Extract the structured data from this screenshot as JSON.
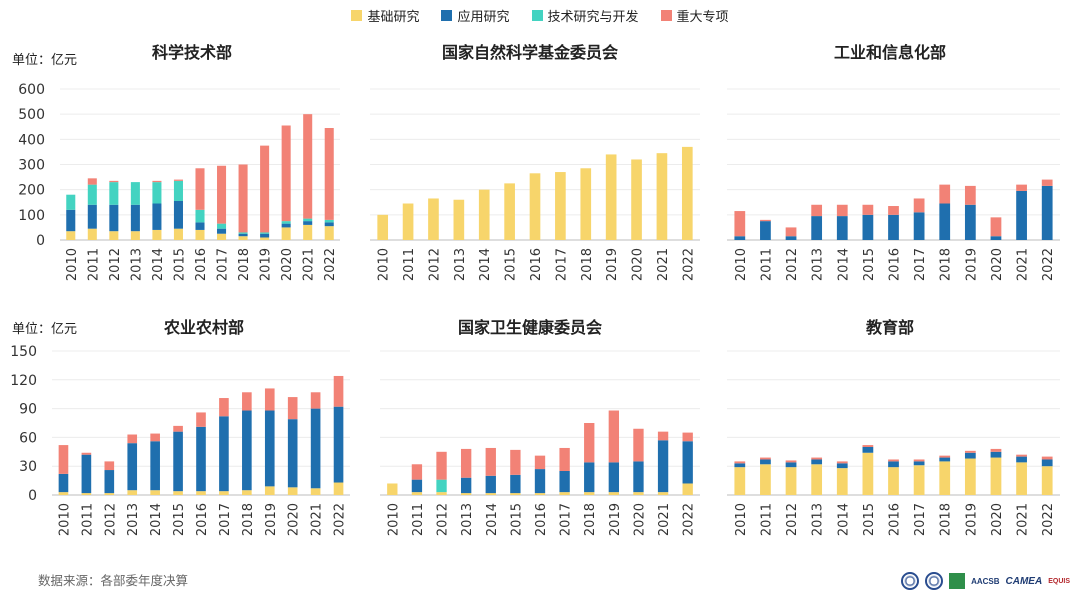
{
  "legend": {
    "items": [
      {
        "label": "基础研究",
        "color": "#f7d56b"
      },
      {
        "label": "应用研究",
        "color": "#1f6fae"
      },
      {
        "label": "技术研究与开发",
        "color": "#43d3c1"
      },
      {
        "label": "重大专项",
        "color": "#f28276"
      }
    ]
  },
  "source": "数据来源：各部委年度决算",
  "logos": {
    "aacsb": "AACSB",
    "camea": "CAMEA",
    "equis": "EQUIS"
  },
  "chart_data": [
    {
      "type": "bar",
      "stacked": true,
      "title": "科学技术部",
      "unit_label": "单位：亿元",
      "categories": [
        "2010",
        "2011",
        "2012",
        "2013",
        "2014",
        "2015",
        "2016",
        "2017",
        "2018",
        "2019",
        "2020",
        "2021",
        "2022"
      ],
      "ylim": [
        0,
        600
      ],
      "yticks": [
        0,
        100,
        200,
        300,
        400,
        500,
        600
      ],
      "show_yticks": true,
      "series": [
        {
          "name": "基础研究",
          "values": [
            35,
            45,
            35,
            35,
            40,
            45,
            40,
            25,
            15,
            10,
            50,
            60,
            55
          ]
        },
        {
          "name": "应用研究",
          "values": [
            85,
            95,
            105,
            105,
            105,
            110,
            30,
            20,
            10,
            15,
            15,
            15,
            15
          ]
        },
        {
          "name": "技术研究与开发",
          "values": [
            60,
            80,
            90,
            90,
            85,
            80,
            50,
            20,
            5,
            5,
            10,
            10,
            10
          ]
        },
        {
          "name": "重大专项",
          "values": [
            0,
            25,
            5,
            0,
            5,
            5,
            165,
            230,
            270,
            345,
            380,
            415,
            365
          ]
        }
      ]
    },
    {
      "type": "bar",
      "stacked": true,
      "title": "国家自然科学基金委员会",
      "unit_label": "",
      "categories": [
        "2010",
        "2011",
        "2012",
        "2013",
        "2014",
        "2015",
        "2016",
        "2017",
        "2018",
        "2019",
        "2020",
        "2021",
        "2022"
      ],
      "ylim": [
        0,
        600
      ],
      "yticks": [
        0,
        100,
        200,
        300,
        400,
        500,
        600
      ],
      "show_yticks": false,
      "series": [
        {
          "name": "基础研究",
          "values": [
            100,
            145,
            165,
            160,
            200,
            225,
            265,
            270,
            285,
            340,
            320,
            345,
            370
          ]
        },
        {
          "name": "应用研究",
          "values": [
            0,
            0,
            0,
            0,
            0,
            0,
            0,
            0,
            0,
            0,
            0,
            0,
            0
          ]
        },
        {
          "name": "技术研究与开发",
          "values": [
            0,
            0,
            0,
            0,
            0,
            0,
            0,
            0,
            0,
            0,
            0,
            0,
            0
          ]
        },
        {
          "name": "重大专项",
          "values": [
            0,
            0,
            0,
            0,
            0,
            0,
            0,
            0,
            0,
            0,
            0,
            0,
            0
          ]
        }
      ]
    },
    {
      "type": "bar",
      "stacked": true,
      "title": "工业和信息化部",
      "unit_label": "",
      "categories": [
        "2010",
        "2011",
        "2012",
        "2013",
        "2014",
        "2015",
        "2016",
        "2017",
        "2018",
        "2019",
        "2020",
        "2021",
        "2022"
      ],
      "ylim": [
        0,
        600
      ],
      "yticks": [
        0,
        100,
        200,
        300,
        400,
        500,
        600
      ],
      "show_yticks": false,
      "series": [
        {
          "name": "基础研究",
          "values": [
            0,
            0,
            0,
            0,
            0,
            0,
            0,
            0,
            0,
            0,
            0,
            0,
            0
          ]
        },
        {
          "name": "应用研究",
          "values": [
            15,
            75,
            15,
            95,
            95,
            100,
            100,
            110,
            145,
            140,
            15,
            195,
            215
          ]
        },
        {
          "name": "技术研究与开发",
          "values": [
            0,
            0,
            0,
            0,
            0,
            0,
            0,
            0,
            0,
            0,
            0,
            0,
            0
          ]
        },
        {
          "name": "重大专项",
          "values": [
            100,
            5,
            35,
            45,
            45,
            40,
            35,
            55,
            75,
            75,
            75,
            25,
            25
          ]
        }
      ]
    },
    {
      "type": "bar",
      "stacked": true,
      "title": "农业农村部",
      "unit_label": "单位：亿元",
      "categories": [
        "2010",
        "2011",
        "2012",
        "2013",
        "2014",
        "2015",
        "2016",
        "2017",
        "2018",
        "2019",
        "2020",
        "2021",
        "2022"
      ],
      "ylim": [
        0,
        150
      ],
      "yticks": [
        0,
        30,
        60,
        90,
        120,
        150
      ],
      "show_yticks": true,
      "series": [
        {
          "name": "基础研究",
          "values": [
            3,
            2,
            2,
            5,
            5,
            4,
            4,
            4,
            5,
            9,
            8,
            7,
            13
          ]
        },
        {
          "name": "应用研究",
          "values": [
            19,
            40,
            24,
            49,
            51,
            62,
            67,
            78,
            83,
            79,
            71,
            83,
            79
          ]
        },
        {
          "name": "技术研究与开发",
          "values": [
            0,
            0,
            0,
            0,
            0,
            0,
            0,
            0,
            0,
            0,
            0,
            0,
            0
          ]
        },
        {
          "name": "重大专项",
          "values": [
            30,
            2,
            9,
            9,
            8,
            6,
            15,
            19,
            19,
            23,
            23,
            17,
            32
          ]
        }
      ]
    },
    {
      "type": "bar",
      "stacked": true,
      "title": "国家卫生健康委员会",
      "unit_label": "",
      "categories": [
        "2010",
        "2011",
        "2012",
        "2013",
        "2014",
        "2015",
        "2016",
        "2017",
        "2018",
        "2019",
        "2020",
        "2021",
        "2022"
      ],
      "ylim": [
        0,
        150
      ],
      "yticks": [
        0,
        30,
        60,
        90,
        120,
        150
      ],
      "show_yticks": false,
      "series": [
        {
          "name": "基础研究",
          "values": [
            12,
            3,
            3,
            2,
            2,
            2,
            2,
            3,
            3,
            3,
            3,
            3,
            12
          ]
        },
        {
          "name": "应用研究",
          "values": [
            0,
            13,
            0,
            16,
            18,
            19,
            25,
            22,
            31,
            31,
            32,
            54,
            44
          ]
        },
        {
          "name": "技术研究与开发",
          "values": [
            0,
            0,
            13,
            0,
            0,
            0,
            0,
            0,
            0,
            0,
            0,
            0,
            0
          ]
        },
        {
          "name": "重大专项",
          "values": [
            0,
            16,
            29,
            30,
            29,
            26,
            14,
            24,
            41,
            54,
            34,
            9,
            9
          ]
        }
      ]
    },
    {
      "type": "bar",
      "stacked": true,
      "title": "教育部",
      "unit_label": "",
      "categories": [
        "2010",
        "2011",
        "2012",
        "2013",
        "2014",
        "2015",
        "2016",
        "2017",
        "2018",
        "2019",
        "2020",
        "2021",
        "2022"
      ],
      "ylim": [
        0,
        150
      ],
      "yticks": [
        0,
        30,
        60,
        90,
        120,
        150
      ],
      "show_yticks": false,
      "series": [
        {
          "name": "基础研究",
          "values": [
            29,
            32,
            29,
            32,
            28,
            44,
            29,
            31,
            35,
            38,
            39,
            34,
            30
          ]
        },
        {
          "name": "应用研究",
          "values": [
            4,
            5,
            5,
            5,
            5,
            6,
            6,
            4,
            4,
            6,
            6,
            6,
            7
          ]
        },
        {
          "name": "技术研究与开发",
          "values": [
            0,
            0,
            0,
            0,
            0,
            0,
            0,
            0,
            0,
            0,
            0,
            0,
            0
          ]
        },
        {
          "name": "重大专项",
          "values": [
            2,
            2,
            2,
            2,
            2,
            2,
            2,
            2,
            2,
            2,
            3,
            2,
            3
          ]
        }
      ]
    }
  ]
}
